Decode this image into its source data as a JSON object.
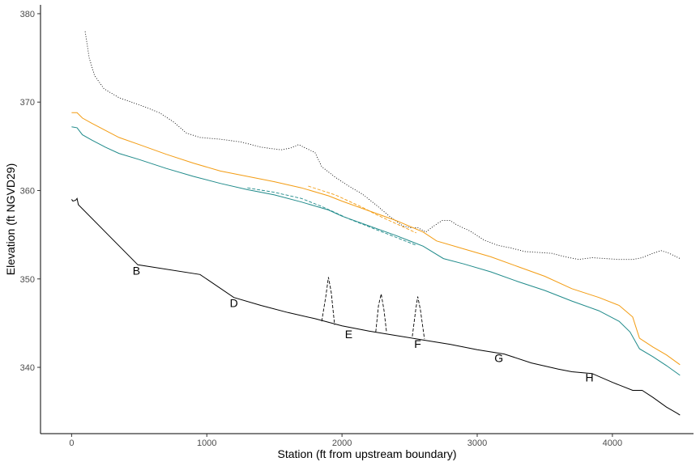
{
  "chart_data": {
    "type": "line",
    "title": "",
    "xlabel": "Station (ft from upstream boundary)",
    "ylabel": "Elevation (ft NGVD29)",
    "xlim": [
      -230,
      4600
    ],
    "ylim": [
      332.5,
      381
    ],
    "x_ticks": [
      0,
      1000,
      2000,
      3000,
      4000
    ],
    "y_ticks": [
      340,
      350,
      360,
      370,
      380
    ],
    "grid": false,
    "legend": "none",
    "series": [
      {
        "color": "#000000",
        "dash": "dotted",
        "points": [
          [
            100,
            378
          ],
          [
            130,
            375
          ],
          [
            170,
            373
          ],
          [
            240,
            371.5
          ],
          [
            350,
            370.5
          ],
          [
            500,
            369.7
          ],
          [
            650,
            368.8
          ],
          [
            750,
            367.8
          ],
          [
            850,
            366.5
          ],
          [
            950,
            366
          ],
          [
            1100,
            365.8
          ],
          [
            1250,
            365.5
          ],
          [
            1400,
            364.9
          ],
          [
            1550,
            364.6
          ],
          [
            1620,
            364.8
          ],
          [
            1680,
            365.2
          ],
          [
            1730,
            364.8
          ],
          [
            1800,
            364.3
          ],
          [
            1850,
            362.7
          ],
          [
            1950,
            361.5
          ],
          [
            2050,
            360.5
          ],
          [
            2150,
            359.6
          ],
          [
            2250,
            358.4
          ],
          [
            2350,
            357.1
          ],
          [
            2450,
            356
          ],
          [
            2500,
            355.8
          ],
          [
            2560,
            355.8
          ],
          [
            2620,
            355.3
          ],
          [
            2680,
            356
          ],
          [
            2740,
            356.6
          ],
          [
            2800,
            356.6
          ],
          [
            2850,
            356.1
          ],
          [
            2950,
            355.4
          ],
          [
            3050,
            354.4
          ],
          [
            3150,
            353.8
          ],
          [
            3250,
            353.5
          ],
          [
            3350,
            353.1
          ],
          [
            3450,
            353
          ],
          [
            3550,
            352.9
          ],
          [
            3650,
            352.5
          ],
          [
            3750,
            352.2
          ],
          [
            3850,
            352.4
          ],
          [
            3950,
            352.3
          ],
          [
            4050,
            352.2
          ],
          [
            4150,
            352.2
          ],
          [
            4220,
            352.4
          ],
          [
            4300,
            352.9
          ],
          [
            4360,
            353.2
          ],
          [
            4420,
            352.9
          ],
          [
            4500,
            352.3
          ]
        ]
      },
      {
        "color": "#f39c12",
        "dash": "solid",
        "points": [
          [
            0,
            368.8
          ],
          [
            40,
            368.8
          ],
          [
            80,
            368.2
          ],
          [
            150,
            367.6
          ],
          [
            250,
            366.8
          ],
          [
            350,
            366
          ],
          [
            500,
            365.2
          ],
          [
            700,
            364.1
          ],
          [
            900,
            363.1
          ],
          [
            1100,
            362.2
          ],
          [
            1300,
            361.6
          ],
          [
            1500,
            361
          ],
          [
            1700,
            360.3
          ],
          [
            1900,
            359.4
          ],
          [
            2000,
            358.8
          ],
          [
            2200,
            357.7
          ],
          [
            2400,
            356.6
          ],
          [
            2600,
            355.3
          ],
          [
            2700,
            354.3
          ],
          [
            2900,
            353.4
          ],
          [
            3100,
            352.5
          ],
          [
            3300,
            351.4
          ],
          [
            3500,
            350.3
          ],
          [
            3700,
            348.9
          ],
          [
            3900,
            347.9
          ],
          [
            4050,
            347
          ],
          [
            4150,
            345.7
          ],
          [
            4200,
            343.3
          ],
          [
            4300,
            342.3
          ],
          [
            4400,
            341.4
          ],
          [
            4500,
            340.3
          ]
        ]
      },
      {
        "color": "#f39c12",
        "dash": "dashed",
        "points": [
          [
            1750,
            360.5
          ],
          [
            1850,
            360
          ],
          [
            1950,
            359.5
          ],
          [
            2050,
            358.8
          ],
          [
            2150,
            358.1
          ],
          [
            2250,
            357.3
          ],
          [
            2350,
            356.6
          ],
          [
            2450,
            355.9
          ],
          [
            2550,
            355.2
          ]
        ]
      },
      {
        "color": "#1f8a8a",
        "dash": "solid",
        "points": [
          [
            0,
            367.2
          ],
          [
            40,
            367.1
          ],
          [
            80,
            366.3
          ],
          [
            150,
            365.7
          ],
          [
            250,
            364.9
          ],
          [
            350,
            364.2
          ],
          [
            500,
            363.5
          ],
          [
            700,
            362.5
          ],
          [
            900,
            361.6
          ],
          [
            1100,
            360.8
          ],
          [
            1300,
            360.1
          ],
          [
            1500,
            359.5
          ],
          [
            1700,
            358.7
          ],
          [
            1900,
            357.8
          ],
          [
            2000,
            357.1
          ],
          [
            2200,
            356
          ],
          [
            2400,
            354.9
          ],
          [
            2600,
            353.7
          ],
          [
            2750,
            352.3
          ],
          [
            2900,
            351.7
          ],
          [
            3100,
            350.8
          ],
          [
            3300,
            349.7
          ],
          [
            3500,
            348.7
          ],
          [
            3700,
            347.5
          ],
          [
            3900,
            346.4
          ],
          [
            4050,
            345.2
          ],
          [
            4130,
            344
          ],
          [
            4200,
            342.1
          ],
          [
            4300,
            341.2
          ],
          [
            4400,
            340.2
          ],
          [
            4500,
            339.1
          ]
        ]
      },
      {
        "color": "#1f8a8a",
        "dash": "dashed",
        "points": [
          [
            1300,
            360.3
          ],
          [
            1500,
            359.8
          ],
          [
            1700,
            359.1
          ],
          [
            1850,
            358.2
          ],
          [
            1950,
            357.5
          ],
          [
            2050,
            356.8
          ],
          [
            2150,
            356.2
          ],
          [
            2250,
            355.6
          ],
          [
            2350,
            355
          ],
          [
            2450,
            354.4
          ],
          [
            2550,
            353.8
          ]
        ]
      },
      {
        "color": "#000000",
        "dash": "solid",
        "points": [
          [
            0,
            359
          ],
          [
            10,
            358.8
          ],
          [
            30,
            358.9
          ],
          [
            40,
            359.1
          ],
          [
            50,
            358.4
          ],
          [
            490,
            351.6
          ],
          [
            950,
            350.5
          ],
          [
            1200,
            347.9
          ],
          [
            1400,
            347
          ],
          [
            1600,
            346.2
          ],
          [
            1800,
            345.5
          ],
          [
            2000,
            344.7
          ],
          [
            2200,
            344.1
          ],
          [
            2400,
            343.6
          ],
          [
            2600,
            343.1
          ],
          [
            2800,
            342.6
          ],
          [
            3000,
            342
          ],
          [
            3200,
            341.5
          ],
          [
            3400,
            340.5
          ],
          [
            3600,
            339.8
          ],
          [
            3700,
            339.5
          ],
          [
            3850,
            339.3
          ],
          [
            4000,
            338.3
          ],
          [
            4150,
            337.4
          ],
          [
            4220,
            337.4
          ],
          [
            4300,
            336.6
          ],
          [
            4400,
            335.5
          ],
          [
            4480,
            334.8
          ],
          [
            4500,
            334.6
          ]
        ]
      },
      {
        "color": "#000000",
        "dash": "dashed",
        "points": [
          [
            1850,
            345.2
          ],
          [
            1880,
            348
          ],
          [
            1900,
            350.2
          ],
          [
            1920,
            348.5
          ],
          [
            1945,
            344.8
          ]
        ]
      },
      {
        "color": "#000000",
        "dash": "dashed",
        "points": [
          [
            2250,
            344
          ],
          [
            2270,
            347
          ],
          [
            2290,
            348.3
          ],
          [
            2310,
            346.5
          ],
          [
            2330,
            343.9
          ]
        ]
      },
      {
        "color": "#000000",
        "dash": "dashed",
        "points": [
          [
            2520,
            343.5
          ],
          [
            2545,
            346.5
          ],
          [
            2560,
            348
          ],
          [
            2580,
            346.5
          ],
          [
            2610,
            343.2
          ]
        ]
      }
    ],
    "annotations": [
      {
        "text": "B",
        "x": 480,
        "y": 350.5
      },
      {
        "text": "D",
        "x": 1200,
        "y": 346.8
      },
      {
        "text": "E",
        "x": 2050,
        "y": 343.3
      },
      {
        "text": "F",
        "x": 2560,
        "y": 342.2
      },
      {
        "text": "G",
        "x": 3160,
        "y": 340.6
      },
      {
        "text": "H",
        "x": 3830,
        "y": 338.4
      }
    ]
  }
}
